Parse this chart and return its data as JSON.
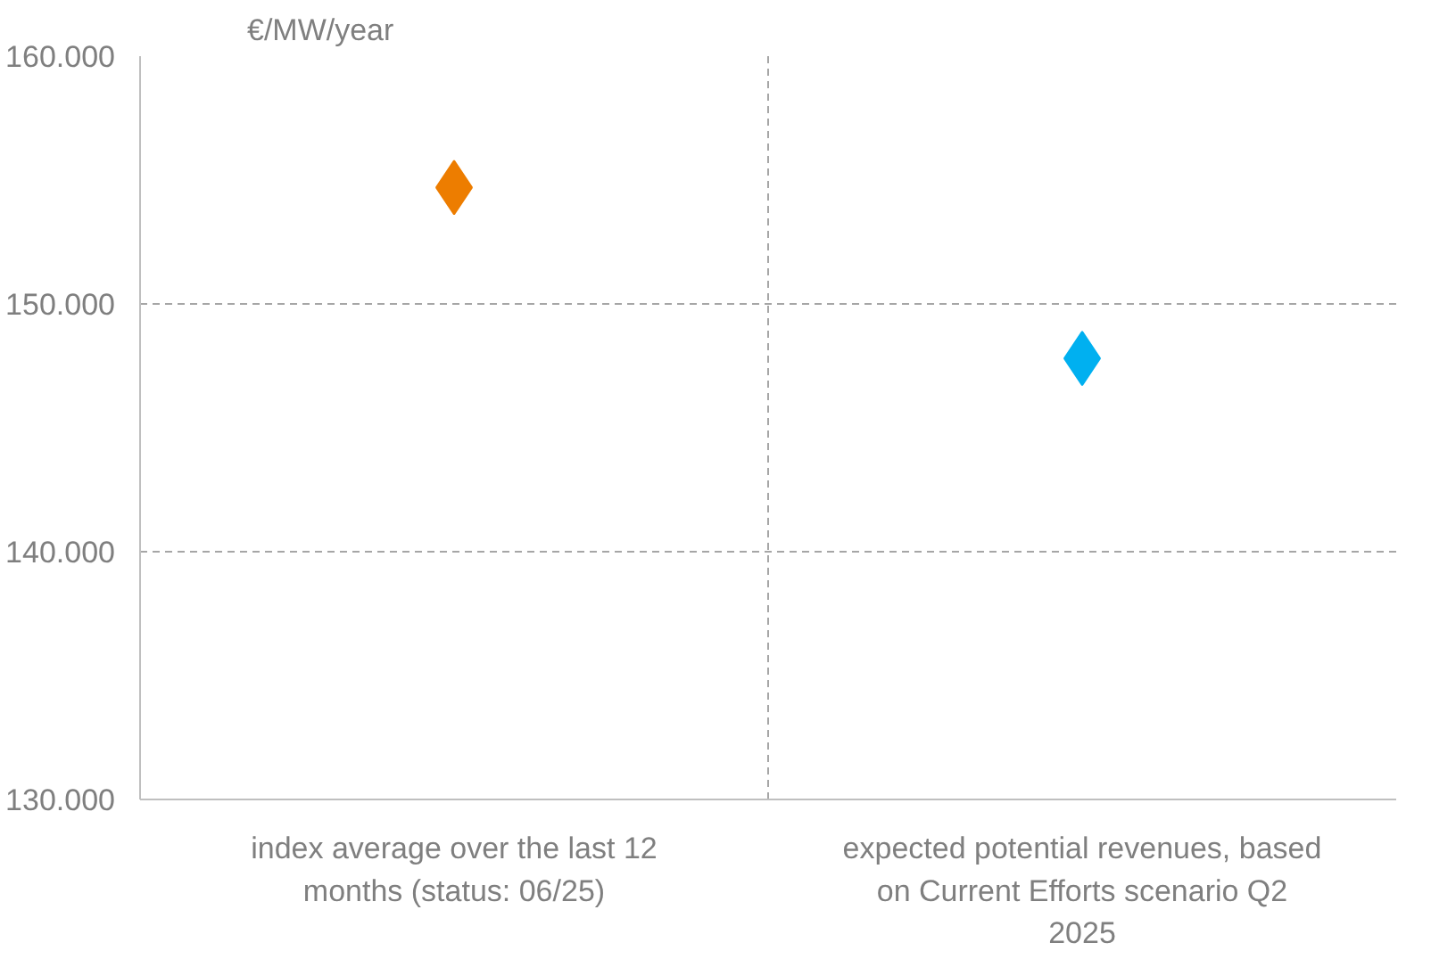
{
  "chart_data": {
    "type": "scatter",
    "ylabel": "€/MW/year",
    "categories": [
      "index average over the last 12 months (status: 06/25)",
      "expected potential revenues, based on Current Efforts scenario Q2 2025"
    ],
    "values": [
      154700,
      147800
    ],
    "colors": [
      "#ed7d00",
      "#00b0f0"
    ],
    "marker": "diamond",
    "grid": true,
    "ylim": [
      130000,
      160000
    ],
    "yticks": [
      {
        "value": 130000,
        "label": "130.000"
      },
      {
        "value": 140000,
        "label": "140.000"
      },
      {
        "value": 150000,
        "label": "150.000"
      },
      {
        "value": 160000,
        "label": "160.000"
      }
    ]
  }
}
